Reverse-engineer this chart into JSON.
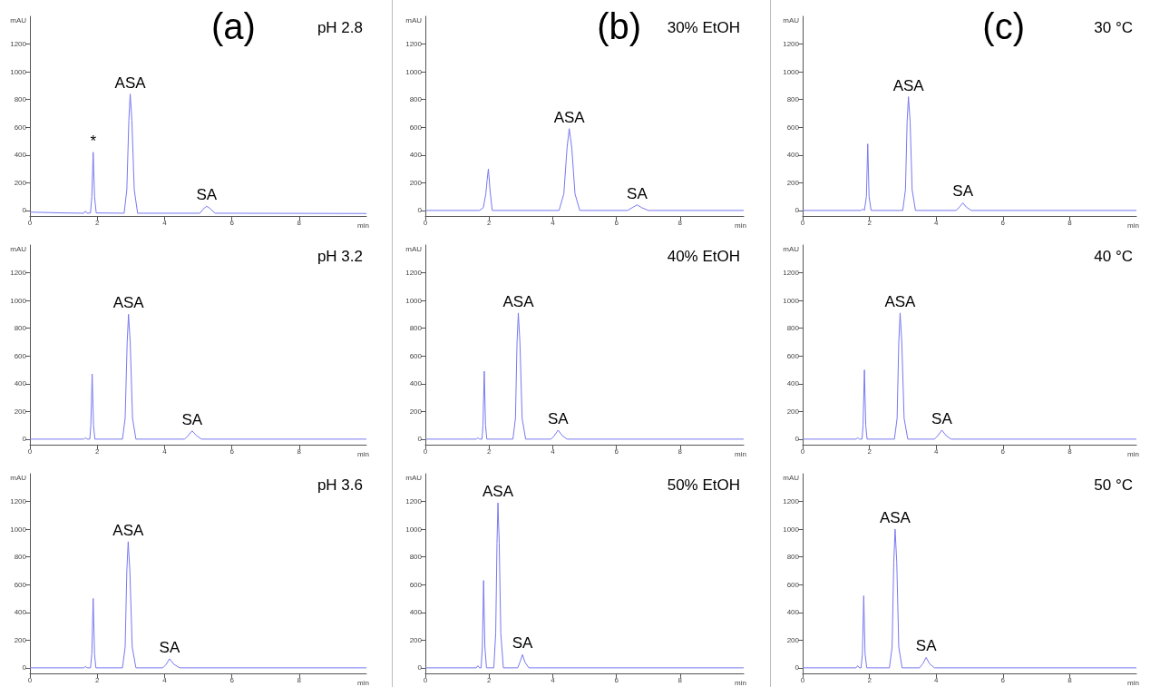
{
  "chart_data": [
    {
      "type": "line",
      "title": "(a)",
      "xlabel": "min",
      "ylabel": "mAU",
      "color": "#7878f0",
      "xlim": [
        0,
        10
      ],
      "ylim": [
        -40,
        1400
      ],
      "xticks": [
        0,
        2,
        4,
        6,
        8
      ],
      "yticks": [
        0,
        200,
        400,
        600,
        800,
        1000,
        1200
      ],
      "x": [
        0,
        1,
        1.6,
        1.65,
        1.7,
        1.8,
        1.84,
        1.88,
        1.92,
        1.97,
        2.8,
        2.88,
        2.94,
        2.98,
        3.03,
        3.1,
        3.2,
        5.05,
        5.15,
        5.25,
        5.35,
        5.5,
        10
      ],
      "values": [
        -12,
        -18,
        -20,
        -5,
        -20,
        -18,
        100,
        420,
        100,
        -18,
        -20,
        150,
        650,
        840,
        650,
        150,
        -20,
        -20,
        10,
        30,
        15,
        -20,
        -22
      ],
      "annotations": [
        "pH 2.8",
        {
          "text": "*",
          "x": 1.88,
          "y": 420
        },
        {
          "text": "ASA",
          "x": 2.98,
          "y": 840
        },
        {
          "text": "SA",
          "x": 5.25,
          "y": 30
        }
      ]
    },
    {
      "type": "line",
      "title": "(b)",
      "xlabel": "min",
      "ylabel": "mAU",
      "color": "#7878f0",
      "xlim": [
        0,
        10
      ],
      "ylim": [
        -40,
        1400
      ],
      "xticks": [
        0,
        2,
        4,
        6,
        8
      ],
      "yticks": [
        0,
        200,
        400,
        600,
        800,
        1000,
        1200
      ],
      "x": [
        0,
        1.7,
        1.82,
        1.9,
        1.94,
        1.98,
        2.03,
        2.1,
        4.2,
        4.35,
        4.45,
        4.52,
        4.6,
        4.7,
        4.85,
        6.35,
        6.5,
        6.65,
        6.8,
        7.0,
        10
      ],
      "values": [
        0,
        0,
        20,
        120,
        220,
        300,
        150,
        0,
        0,
        120,
        450,
        590,
        450,
        120,
        0,
        0,
        20,
        40,
        20,
        0,
        0
      ],
      "annotations": [
        "30% EtOH",
        {
          "text": "ASA",
          "x": 4.52,
          "y": 590
        },
        {
          "text": "SA",
          "x": 6.65,
          "y": 40
        }
      ]
    },
    {
      "type": "line",
      "title": "(c)",
      "xlabel": "min",
      "ylabel": "mAU",
      "color": "#7878f0",
      "xlim": [
        0,
        10
      ],
      "ylim": [
        -40,
        1400
      ],
      "xticks": [
        0,
        2,
        4,
        6,
        8
      ],
      "yticks": [
        0,
        200,
        400,
        600,
        800,
        1000,
        1200
      ],
      "x": [
        0,
        1.75,
        1.8,
        1.85,
        1.91,
        1.95,
        1.99,
        2.05,
        3.0,
        3.08,
        3.13,
        3.17,
        3.22,
        3.28,
        3.38,
        4.6,
        4.7,
        4.8,
        4.9,
        5.05,
        10
      ],
      "values": [
        0,
        0,
        10,
        0,
        100,
        480,
        100,
        0,
        0,
        150,
        640,
        820,
        640,
        150,
        0,
        0,
        25,
        55,
        25,
        0,
        0
      ],
      "annotations": [
        "30 °C",
        {
          "text": "ASA",
          "x": 3.17,
          "y": 820
        },
        {
          "text": "SA",
          "x": 4.8,
          "y": 55
        }
      ]
    },
    {
      "type": "line",
      "xlabel": "min",
      "ylabel": "mAU",
      "color": "#7878f0",
      "xlim": [
        0,
        10
      ],
      "ylim": [
        -40,
        1400
      ],
      "xticks": [
        0,
        2,
        4,
        6,
        8
      ],
      "yticks": [
        0,
        200,
        400,
        600,
        800,
        1000,
        1200
      ],
      "x": [
        0,
        1.6,
        1.65,
        1.7,
        1.78,
        1.81,
        1.85,
        1.89,
        1.93,
        2.75,
        2.83,
        2.89,
        2.93,
        2.98,
        3.05,
        3.15,
        4.6,
        4.7,
        4.82,
        4.95,
        5.1,
        10
      ],
      "values": [
        0,
        0,
        10,
        0,
        0,
        100,
        470,
        100,
        0,
        0,
        150,
        700,
        900,
        700,
        150,
        0,
        0,
        25,
        60,
        25,
        0,
        0
      ],
      "annotations": [
        "pH 3.2",
        {
          "text": "ASA",
          "x": 2.93,
          "y": 900
        },
        {
          "text": "SA",
          "x": 4.82,
          "y": 60
        }
      ]
    },
    {
      "type": "line",
      "xlabel": "min",
      "ylabel": "mAU",
      "color": "#7878f0",
      "xlim": [
        0,
        10
      ],
      "ylim": [
        -40,
        1400
      ],
      "xticks": [
        0,
        2,
        4,
        6,
        8
      ],
      "yticks": [
        0,
        200,
        400,
        600,
        800,
        1000,
        1200
      ],
      "x": [
        0,
        1.6,
        1.65,
        1.7,
        1.78,
        1.81,
        1.85,
        1.89,
        1.93,
        2.75,
        2.83,
        2.88,
        2.92,
        2.97,
        3.04,
        3.15,
        3.95,
        4.05,
        4.17,
        4.3,
        4.45,
        10
      ],
      "values": [
        0,
        0,
        10,
        0,
        0,
        100,
        490,
        100,
        0,
        0,
        150,
        700,
        910,
        700,
        150,
        0,
        0,
        25,
        65,
        25,
        0,
        0
      ],
      "annotations": [
        "40% EtOH",
        {
          "text": "ASA",
          "x": 2.92,
          "y": 910
        },
        {
          "text": "SA",
          "x": 4.17,
          "y": 65
        }
      ]
    },
    {
      "type": "line",
      "xlabel": "min",
      "ylabel": "mAU",
      "color": "#7878f0",
      "xlim": [
        0,
        10
      ],
      "ylim": [
        -40,
        1400
      ],
      "xticks": [
        0,
        2,
        4,
        6,
        8
      ],
      "yticks": [
        0,
        200,
        400,
        600,
        800,
        1000,
        1200
      ],
      "x": [
        0,
        1.6,
        1.65,
        1.7,
        1.78,
        1.81,
        1.85,
        1.89,
        1.93,
        2.75,
        2.83,
        2.88,
        2.92,
        2.97,
        3.04,
        3.15,
        3.95,
        4.05,
        4.17,
        4.3,
        4.45,
        10
      ],
      "values": [
        0,
        0,
        10,
        0,
        0,
        100,
        500,
        100,
        0,
        0,
        150,
        700,
        910,
        700,
        150,
        0,
        0,
        25,
        65,
        25,
        0,
        0
      ],
      "annotations": [
        "40 °C",
        {
          "text": "ASA",
          "x": 2.92,
          "y": 910
        },
        {
          "text": "SA",
          "x": 4.17,
          "y": 65
        }
      ]
    },
    {
      "type": "line",
      "xlabel": "min",
      "ylabel": "mAU",
      "color": "#7878f0",
      "xlim": [
        0,
        10
      ],
      "ylim": [
        -40,
        1400
      ],
      "xticks": [
        0,
        2,
        4,
        6,
        8
      ],
      "yticks": [
        0,
        200,
        400,
        600,
        800,
        1000,
        1200
      ],
      "x": [
        0,
        1.6,
        1.65,
        1.7,
        1.8,
        1.84,
        1.88,
        1.92,
        1.96,
        2.75,
        2.83,
        2.88,
        2.92,
        2.97,
        3.04,
        3.15,
        3.95,
        4.05,
        4.15,
        4.28,
        4.45,
        10
      ],
      "values": [
        0,
        0,
        10,
        0,
        0,
        100,
        500,
        100,
        0,
        0,
        150,
        700,
        910,
        700,
        150,
        0,
        0,
        25,
        65,
        25,
        0,
        0
      ],
      "annotations": [
        "pH 3.6",
        {
          "text": "ASA",
          "x": 2.92,
          "y": 910
        },
        {
          "text": "SA",
          "x": 4.15,
          "y": 65
        }
      ]
    },
    {
      "type": "line",
      "xlabel": "min",
      "ylabel": "mAU",
      "color": "#7878f0",
      "xlim": [
        0,
        10
      ],
      "ylim": [
        -40,
        1400
      ],
      "xticks": [
        0,
        2,
        4,
        6,
        8
      ],
      "yticks": [
        0,
        200,
        400,
        600,
        800,
        1000,
        1200
      ],
      "x": [
        0,
        1.6,
        1.65,
        1.7,
        1.75,
        1.79,
        1.83,
        1.87,
        1.92,
        2.15,
        2.21,
        2.25,
        2.28,
        2.32,
        2.37,
        2.45,
        2.9,
        2.97,
        3.05,
        3.13,
        3.25,
        10
      ],
      "values": [
        0,
        0,
        15,
        0,
        0,
        150,
        630,
        150,
        0,
        0,
        250,
        900,
        1190,
        900,
        250,
        0,
        0,
        40,
        95,
        40,
        0,
        0
      ],
      "annotations": [
        "50% EtOH",
        {
          "text": "ASA",
          "x": 2.28,
          "y": 1190
        },
        {
          "text": "SA",
          "x": 3.05,
          "y": 95
        }
      ]
    },
    {
      "type": "line",
      "xlabel": "min",
      "ylabel": "mAU",
      "color": "#7878f0",
      "xlim": [
        0,
        10
      ],
      "ylim": [
        -40,
        1400
      ],
      "xticks": [
        0,
        2,
        4,
        6,
        8
      ],
      "yticks": [
        0,
        200,
        400,
        600,
        800,
        1000,
        1200
      ],
      "x": [
        0,
        1.6,
        1.65,
        1.7,
        1.75,
        1.79,
        1.83,
        1.87,
        1.92,
        2.6,
        2.68,
        2.73,
        2.77,
        2.82,
        2.88,
        2.98,
        3.5,
        3.6,
        3.7,
        3.8,
        3.95,
        10
      ],
      "values": [
        0,
        0,
        15,
        0,
        0,
        100,
        520,
        100,
        0,
        0,
        150,
        760,
        1000,
        760,
        150,
        0,
        0,
        30,
        75,
        30,
        0,
        0
      ],
      "annotations": [
        "50 °C",
        {
          "text": "ASA",
          "x": 2.77,
          "y": 1000
        },
        {
          "text": "SA",
          "x": 3.7,
          "y": 75
        }
      ]
    }
  ]
}
